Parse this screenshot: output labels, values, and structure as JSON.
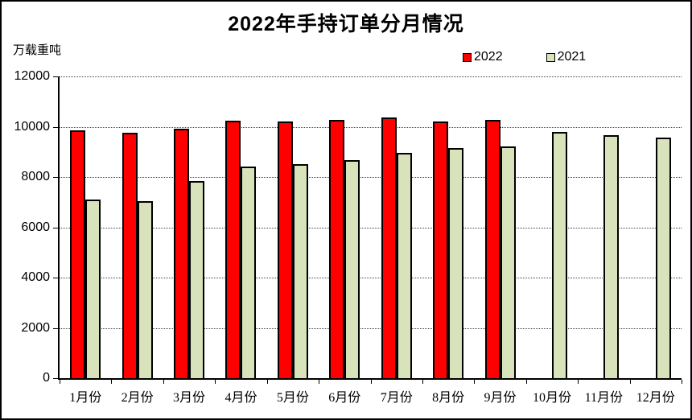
{
  "chart_data": {
    "type": "bar",
    "title": "2022年手持订单分月情况",
    "ylabel": "万载重吨",
    "xlabel": "",
    "categories": [
      "1月份",
      "2月份",
      "3月份",
      "4月份",
      "5月份",
      "6月份",
      "7月份",
      "8月份",
      "9月份",
      "10月份",
      "11月份",
      "12月份"
    ],
    "series": [
      {
        "name": "2022",
        "color": "#FF0000",
        "values": [
          9850,
          9770,
          9920,
          10250,
          10200,
          10280,
          10370,
          10210,
          10260,
          null,
          null,
          null
        ]
      },
      {
        "name": "2021",
        "color": "#D8E3BC",
        "values": [
          7100,
          7040,
          7840,
          8430,
          8520,
          8660,
          8960,
          9150,
          9230,
          9800,
          9660,
          9580
        ]
      }
    ],
    "ylim": [
      0,
      12000
    ],
    "yticks": [
      0,
      2000,
      4000,
      6000,
      8000,
      10000,
      12000
    ],
    "grid": "horizontal-dotted",
    "legend_position": "top-right",
    "bar_border_color": "#000000",
    "axis_color": "#000000"
  }
}
